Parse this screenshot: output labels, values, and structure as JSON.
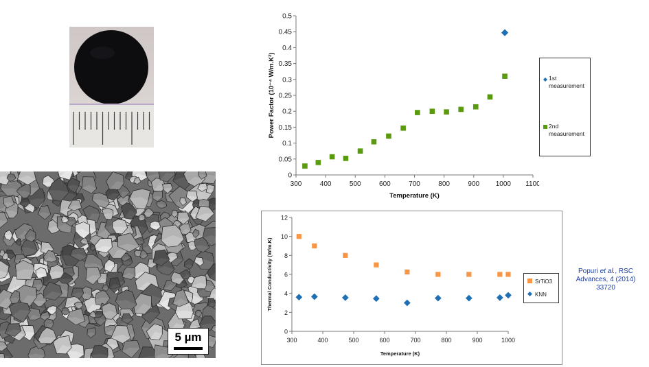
{
  "photo": {
    "name": "sample-disc-photo"
  },
  "sem": {
    "scale_label": "5 µm"
  },
  "citation": {
    "author": "Popuri",
    "etal": "et al.",
    "rest1": ", RSC",
    "line2": "Advances, 4 (2014)",
    "line3": "33720"
  },
  "chart_data": [
    {
      "type": "scatter",
      "title": "",
      "xlabel": "Temperature (K)",
      "ylabel": "Power Factor (10⁻⁴ W/m.K²)",
      "xlim": [
        300,
        1100
      ],
      "ylim": [
        0,
        0.5
      ],
      "x_ticks": [
        "300",
        "400",
        "500",
        "600",
        "700",
        "800",
        "900",
        "1000",
        "1100"
      ],
      "y_ticks": [
        "0",
        "0.05",
        "0.1",
        "0.15",
        "0.2",
        "0.25",
        "0.3",
        "0.35",
        "0.4",
        "0.45",
        "0.5"
      ],
      "grid": false,
      "legend_position": "right",
      "series": [
        {
          "name": "1st measurement",
          "name_lines": [
            "1st",
            "measurement"
          ],
          "marker": "diamond",
          "color": "#1f6fb5",
          "points": [
            [
              1005,
              0.447
            ]
          ]
        },
        {
          "name": "2nd measurement",
          "name_lines": [
            "2nd",
            "measurement"
          ],
          "marker": "square",
          "color": "#5a9a0f",
          "points": [
            [
              330,
              0.028
            ],
            [
              375,
              0.039
            ],
            [
              422,
              0.057
            ],
            [
              468,
              0.052
            ],
            [
              517,
              0.075
            ],
            [
              563,
              0.104
            ],
            [
              613,
              0.122
            ],
            [
              662,
              0.147
            ],
            [
              710,
              0.196
            ],
            [
              760,
              0.2
            ],
            [
              808,
              0.198
            ],
            [
              857,
              0.206
            ],
            [
              907,
              0.214
            ],
            [
              955,
              0.245
            ],
            [
              1005,
              0.31
            ]
          ]
        }
      ]
    },
    {
      "type": "scatter",
      "title": "",
      "xlabel": "Temperature (K)",
      "ylabel": "Thermal Conductivity (W/m.K)",
      "xlim": [
        300,
        1000
      ],
      "ylim": [
        0,
        12
      ],
      "x_ticks": [
        "300",
        "400",
        "500",
        "600",
        "700",
        "800",
        "900",
        "1000"
      ],
      "y_ticks": [
        "0",
        "2",
        "4",
        "6",
        "8",
        "10",
        "12"
      ],
      "grid": false,
      "legend_position": "right",
      "series": [
        {
          "name": "SrTiO3",
          "marker": "square",
          "color": "#f79646",
          "points": [
            [
              323,
              10.0
            ],
            [
              373,
              9.0
            ],
            [
              473,
              8.0
            ],
            [
              573,
              7.0
            ],
            [
              673,
              6.25
            ],
            [
              773,
              6.0
            ],
            [
              873,
              6.0
            ],
            [
              973,
              6.0
            ],
            [
              1000,
              6.0
            ]
          ]
        },
        {
          "name": "KNN",
          "marker": "diamond",
          "color": "#1f6fb5",
          "points": [
            [
              323,
              3.6
            ],
            [
              373,
              3.65
            ],
            [
              473,
              3.55
            ],
            [
              573,
              3.45
            ],
            [
              673,
              3.0
            ],
            [
              773,
              3.5
            ],
            [
              873,
              3.5
            ],
            [
              973,
              3.55
            ],
            [
              1000,
              3.8
            ]
          ]
        }
      ]
    }
  ]
}
